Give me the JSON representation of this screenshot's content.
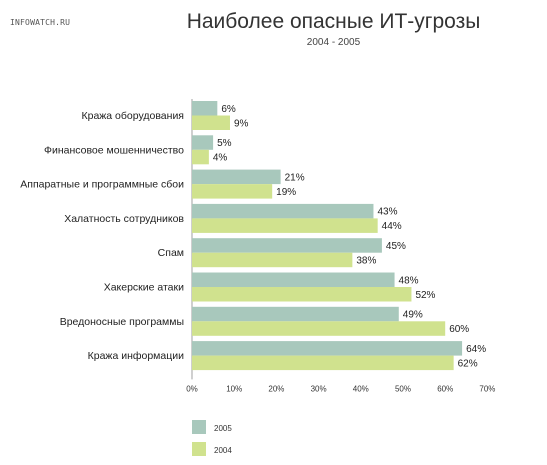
{
  "watermark": "INFOWATCH.RU",
  "chart_data": {
    "type": "bar",
    "orientation": "horizontal",
    "title": "Наиболее опасные ИТ-угрозы",
    "subtitle": "2004 - 2005",
    "categories": [
      "Кража оборудования",
      "Финансовое мошенничество",
      "Аппаратные и программные сбои",
      "Халатность сотрудников",
      "Спам",
      "Хакерские атаки",
      "Вредоносные программы",
      "Кража информации"
    ],
    "series": [
      {
        "name": "2005",
        "color": "#a8c8bc",
        "values": [
          6,
          5,
          21,
          43,
          45,
          48,
          49,
          64
        ],
        "labels": [
          "6%",
          "5%",
          "21%",
          "43%",
          "45%",
          "48%",
          "49%",
          "64%"
        ]
      },
      {
        "name": "2004",
        "color": "#d0e28e",
        "values": [
          9,
          4,
          19,
          44,
          38,
          52,
          60,
          62
        ],
        "labels": [
          "9%",
          "4%",
          "19%",
          "44%",
          "38%",
          "52%",
          "60%",
          "62%"
        ]
      }
    ],
    "xlim": [
      0,
      70
    ],
    "xticks": [
      "0%",
      "10%",
      "20%",
      "30%",
      "40%",
      "50%",
      "60%",
      "70%"
    ],
    "legend_position": "bottom-left"
  }
}
